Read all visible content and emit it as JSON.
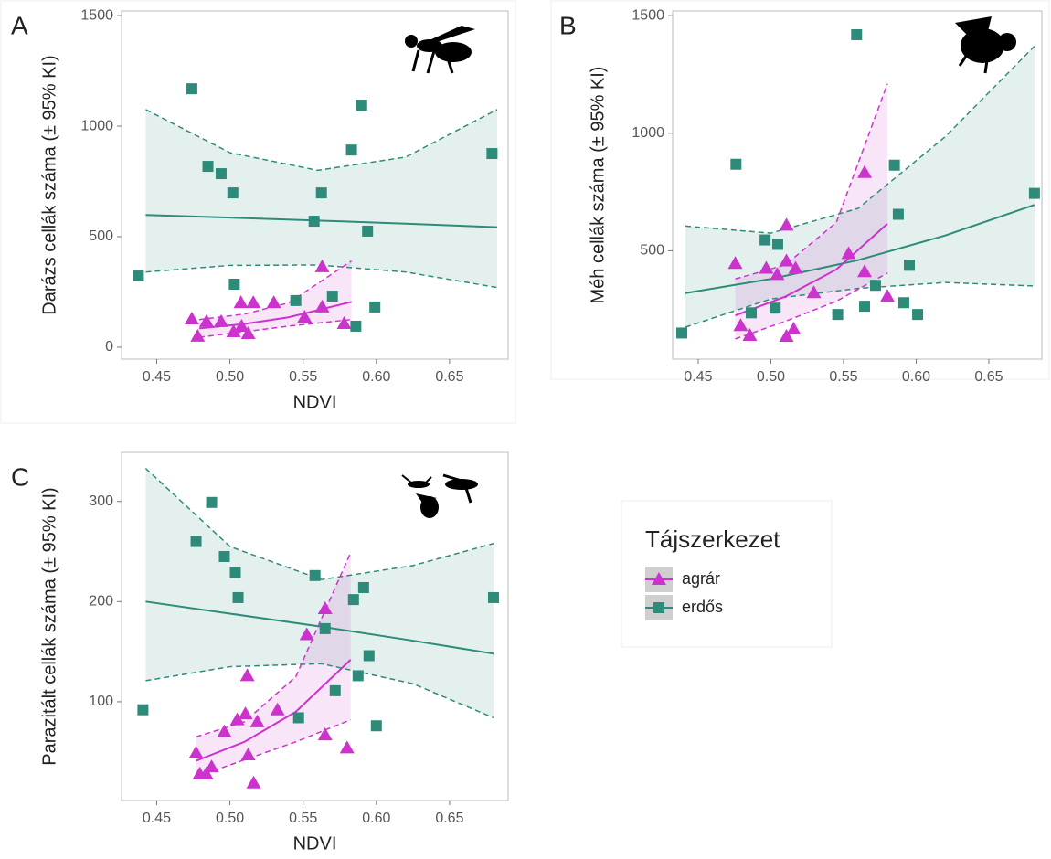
{
  "legend": {
    "title": "Tájszerkezet"
  },
  "chart_data": [
    {
      "type": "scatter",
      "label": "A",
      "ylabel": "Darázs cellák száma (± 95% KI)",
      "xlabel": "NDVI",
      "xlim": [
        0.426,
        0.69
      ],
      "ylim": [
        -54,
        1521
      ],
      "xticks": [
        0.45,
        {
          "value": 0.5,
          "label": "0.50"
        },
        0.55,
        {
          "value": 0.6,
          "label": "0.60"
        },
        0.65
      ],
      "yticks": [
        0,
        500,
        1000,
        1500
      ],
      "series": [
        {
          "name": "agrár",
          "color": "#cc33cc",
          "marker": "triangle",
          "x": [
            0.474,
            0.478,
            0.484,
            0.494,
            0.5025,
            0.5075,
            0.508,
            0.5125,
            0.516,
            0.53,
            0.551,
            0.563,
            0.563,
            0.578
          ],
          "values": [
            128,
            50,
            116,
            116,
            70,
            202,
            95,
            62,
            202,
            202,
            136,
            182,
            364,
            107
          ],
          "fit": {
            "x": [
              0.479,
              0.51,
              0.54,
              0.583
            ],
            "values": [
              85,
              105,
              135,
              205
            ],
            "lower": [
              45,
              70,
              95,
              125
            ],
            "upper": [
              125,
              150,
              200,
              390
            ]
          }
        },
        {
          "name": "erdős",
          "color": "#2e8b7a",
          "marker": "square",
          "x": [
            0.4375,
            0.474,
            0.485,
            0.494,
            0.502,
            0.503,
            0.545,
            0.5575,
            0.5625,
            0.57,
            0.583,
            0.586,
            0.59,
            0.594,
            0.599,
            0.679
          ],
          "values": [
            322,
            1169,
            818,
            785,
            698,
            285,
            211,
            570,
            698,
            231,
            892,
            95,
            1095,
            525,
            182,
            876
          ],
          "fit": {
            "x": [
              0.4425,
              0.5,
              0.56,
              0.62,
              0.6825
            ],
            "values": [
              598,
              586,
              573,
              559,
              543
            ],
            "lower": [
              340,
              370,
              372,
              340,
              270
            ],
            "upper": [
              1075,
              880,
              800,
              860,
              1075
            ]
          }
        }
      ]
    },
    {
      "type": "scatter",
      "label": "B",
      "ylabel": "Méh cellák száma (± 95% KI)",
      "xlim": [
        0.4324,
        0.6865
      ],
      "ylim": [
        39,
        1520
      ],
      "xticks": [
        0.45,
        {
          "value": 0.5,
          "label": "0.50"
        },
        0.55,
        {
          "value": 0.6,
          "label": "0.60"
        },
        0.65
      ],
      "yticks": [
        500,
        1000,
        1500
      ],
      "series": [
        {
          "color": "#cc33cc",
          "marker": "triangle",
          "x": [
            0.4755,
            0.4792,
            0.4855,
            0.4968,
            0.5044,
            0.5107,
            0.5107,
            0.517,
            0.5107,
            0.5157,
            0.5296,
            0.5535,
            0.5645,
            0.5645,
            0.5802
          ],
          "values": [
            446,
            182,
            140,
            426,
            399,
            609,
            457,
            426,
            136,
            167,
            322,
            488,
            833,
            411,
            306
          ],
          "fit": {
            "x": [
              0.4755,
              0.51,
              0.545,
              0.5802
            ],
            "values": [
              225,
              305,
              420,
              615
            ],
            "lower": [
              125,
              200,
              285,
              405
            ],
            "upper": [
              380,
              440,
              620,
              1210
            ]
          }
        },
        {
          "color": "#2e8b7a",
          "marker": "square",
          "x": [
            0.4387,
            0.476,
            0.4865,
            0.496,
            0.5047,
            0.503,
            0.546,
            0.559,
            0.5645,
            0.572,
            0.585,
            0.5877,
            0.5915,
            0.5953,
            0.601,
            0.6814
          ],
          "values": [
            150,
            868,
            236,
            546,
            527,
            256,
            229,
            1419,
            264,
            353,
            864,
            655,
            279,
            438,
            229,
            744
          ],
          "fit": {
            "x": [
              0.4412,
              0.5,
              0.56,
              0.62,
              0.6814
            ],
            "values": [
              320,
              380,
              460,
              565,
              695
            ],
            "lower": [
              175,
              295,
              340,
              365,
              350
            ],
            "upper": [
              605,
              575,
              680,
              985,
              1370
            ]
          }
        }
      ]
    },
    {
      "type": "scatter",
      "label": "C",
      "ylabel": "Parazitált cellák száma (± 95% KI)",
      "xlabel": "NDVI",
      "xlim": [
        0.426,
        0.69
      ],
      "ylim": [
        1.4,
        349
      ],
      "xticks": [
        0.45,
        {
          "value": 0.5,
          "label": "0.50"
        },
        0.55,
        {
          "value": 0.6,
          "label": "0.60"
        },
        0.65
      ],
      "yticks": [
        100,
        200,
        300
      ],
      "series": [
        {
          "color": "#cc33cc",
          "marker": "triangle",
          "x": [
            0.4769,
            0.4794,
            0.4838,
            0.4875,
            0.4962,
            0.505,
            0.5106,
            0.5119,
            0.5125,
            0.5162,
            0.5187,
            0.5325,
            0.5525,
            0.565,
            0.565,
            0.58
          ],
          "values": [
            49,
            28,
            28,
            35,
            70,
            82,
            88,
            126,
            47,
            19,
            80,
            92,
            167,
            193,
            67,
            54
          ],
          "fit": {
            "x": [
              0.4769,
              0.51,
              0.545,
              0.5825
            ],
            "values": [
              41,
              60,
              90,
              142
            ],
            "lower": [
              25,
              42,
              60,
              82
            ],
            "upper": [
              65,
              80,
              125,
              249
            ]
          }
        },
        {
          "color": "#2e8b7a",
          "marker": "square",
          "x": [
            0.4406,
            0.4769,
            0.4875,
            0.4962,
            0.5037,
            0.5056,
            0.5469,
            0.5581,
            0.565,
            0.5719,
            0.5844,
            0.5875,
            0.5913,
            0.595,
            0.6,
            0.68
          ],
          "values": [
            92,
            260,
            299,
            245,
            229,
            204,
            84,
            226,
            173,
            111,
            202,
            126,
            214,
            146,
            76,
            204
          ],
          "fit": {
            "x": [
              0.4425,
              0.5,
              0.5625,
              0.625,
              0.68
            ],
            "values": [
              200,
              188,
              175,
              161,
              148
            ],
            "lower": [
              121,
              135,
              138,
              118,
              84
            ],
            "upper": [
              333,
              255,
              222,
              236,
              258
            ]
          }
        }
      ]
    }
  ]
}
